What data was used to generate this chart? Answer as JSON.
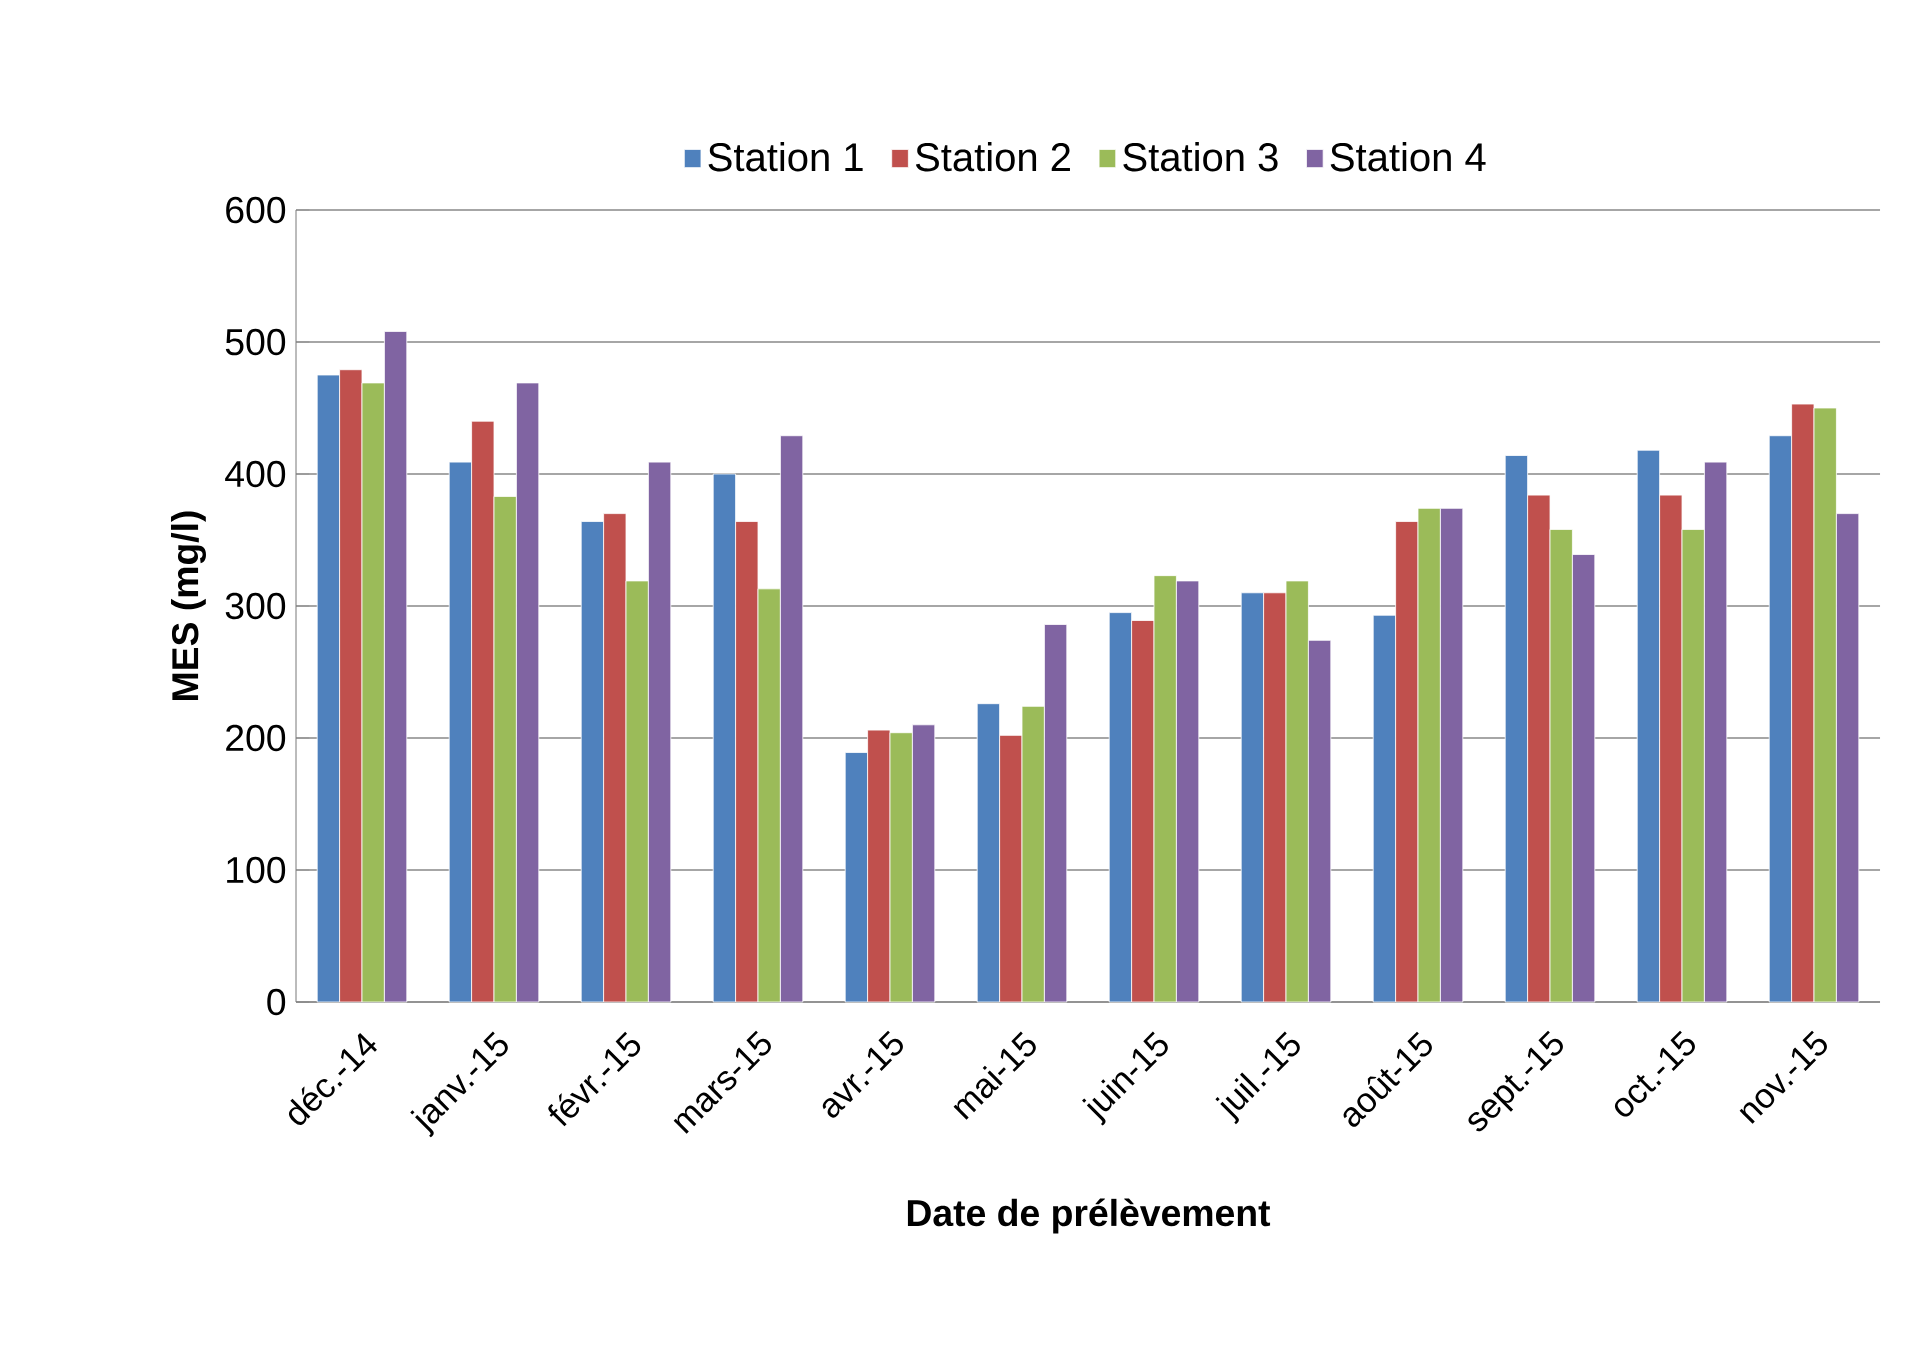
{
  "chart_data": {
    "type": "bar",
    "xlabel": "Date de prélèvement",
    "ylabel": "MES (mg/l)",
    "categories": [
      "déc.-14",
      "janv.-15",
      "févr.-15",
      "mars-15",
      "avr.-15",
      "mai-15",
      "juin-15",
      "juil.-15",
      "août-15",
      "sept.-15",
      "oct.-15",
      "nov.-15"
    ],
    "series": [
      {
        "name": "Station 1",
        "color": "#4f81bd",
        "values": [
          475,
          409,
          364,
          400,
          189,
          226,
          295,
          310,
          293,
          414,
          418,
          429
        ]
      },
      {
        "name": "Station 2",
        "color": "#c0504d",
        "values": [
          479,
          440,
          370,
          364,
          206,
          202,
          289,
          310,
          364,
          384,
          384,
          453
        ]
      },
      {
        "name": "Station 3",
        "color": "#9bbb59",
        "values": [
          469,
          383,
          319,
          313,
          204,
          224,
          323,
          319,
          374,
          358,
          358,
          450
        ]
      },
      {
        "name": "Station 4",
        "color": "#8064a2",
        "values": [
          508,
          469,
          409,
          429,
          210,
          286,
          319,
          274,
          374,
          339,
          409,
          370
        ]
      }
    ],
    "ylim": [
      0,
      600
    ],
    "yticks": [
      0,
      100,
      200,
      300,
      400,
      500,
      600
    ],
    "grid": "y",
    "legend": "top"
  }
}
